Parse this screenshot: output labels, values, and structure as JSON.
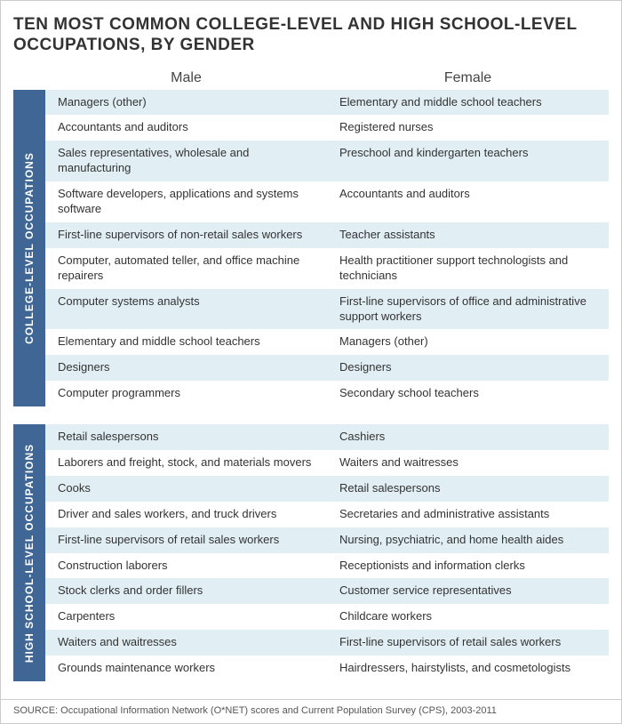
{
  "title": "TEN MOST COMMON COLLEGE-LEVEL AND HIGH SCHOOL-LEVEL OCCUPATIONS,  BY GENDER",
  "columns": {
    "left": "Male",
    "right": "Female"
  },
  "colors": {
    "bar": "#3f6694",
    "stripe_even": "#e1eff5",
    "stripe_odd": "#ffffff",
    "text": "#333333"
  },
  "sections": [
    {
      "label": "COLLEGE-LEVEL OCCUPATIONS",
      "rows": [
        {
          "m": "Managers (other)",
          "f": "Elementary and middle school teachers"
        },
        {
          "m": "Accountants and auditors",
          "f": "Registered nurses"
        },
        {
          "m": "Sales representatives, wholesale and manufacturing",
          "f": "Preschool and kindergarten teachers"
        },
        {
          "m": "Software developers, applications and systems software",
          "f": "Accountants and auditors"
        },
        {
          "m": "First-line supervisors of non-retail sales workers",
          "f": "Teacher assistants"
        },
        {
          "m": "Computer, automated teller, and office machine repairers",
          "f": "Health practitioner support technologists and technicians"
        },
        {
          "m": "Computer systems analysts",
          "f": "First-line supervisors of office and administrative support workers"
        },
        {
          "m": "Elementary and middle school teachers",
          "f": "Managers (other)"
        },
        {
          "m": "Designers",
          "f": "Designers"
        },
        {
          "m": "Computer programmers",
          "f": "Secondary school teachers"
        }
      ]
    },
    {
      "label": "HIGH SCHOOL-LEVEL OCCUPATIONS",
      "rows": [
        {
          "m": "Retail salespersons",
          "f": "Cashiers"
        },
        {
          "m": "Laborers and freight, stock, and materials movers",
          "f": "Waiters and waitresses"
        },
        {
          "m": "Cooks",
          "f": "Retail salespersons"
        },
        {
          "m": "Driver and sales workers, and truck drivers",
          "f": "Secretaries and administrative assistants"
        },
        {
          "m": "First-line supervisors of retail sales workers",
          "f": "Nursing, psychiatric, and home health aides"
        },
        {
          "m": "Construction laborers",
          "f": "Receptionists and information clerks"
        },
        {
          "m": "Stock clerks and order fillers",
          "f": "Customer service representatives"
        },
        {
          "m": "Carpenters",
          "f": "Childcare workers"
        },
        {
          "m": "Waiters and waitresses",
          "f": "First-line supervisors of retail sales workers"
        },
        {
          "m": "Grounds maintenance workers",
          "f": "Hairdressers, hairstylists, and cosmetologists"
        }
      ]
    }
  ],
  "source": "SOURCE: Occupational Information Network (O*NET) scores and Current Population Survey (CPS), 2003-2011"
}
